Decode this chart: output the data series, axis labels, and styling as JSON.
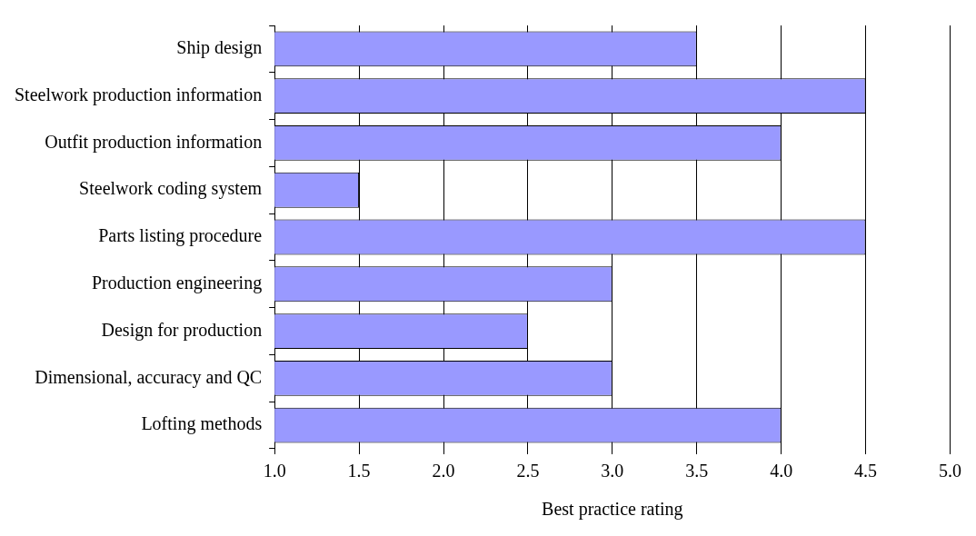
{
  "chart_data": {
    "type": "bar",
    "orientation": "horizontal",
    "xlabel": "Best practice rating",
    "categories": [
      "Ship design",
      "Steelwork production information",
      "Outfit production information",
      "Steelwork coding system",
      "Parts listing procedure",
      "Production engineering",
      "Design for production",
      "Dimensional, accuracy and QC",
      "Lofting methods"
    ],
    "values": [
      3.5,
      4.5,
      4.0,
      1.5,
      4.5,
      3.0,
      2.5,
      3.0,
      4.0
    ],
    "color": "#9999ff",
    "xlim": [
      1,
      5
    ],
    "xticks": [
      {
        "value": 1,
        "label": "1.0"
      },
      {
        "value": 1.5,
        "label": "1.5"
      },
      {
        "value": 2,
        "label": "2.0"
      },
      {
        "value": 2.5,
        "label": "2.5"
      },
      {
        "value": 3,
        "label": "3.0"
      },
      {
        "value": 3.5,
        "label": "3.5"
      },
      {
        "value": 4,
        "label": "4.0"
      },
      {
        "value": 4.5,
        "label": "4.5"
      },
      {
        "value": 5,
        "label": "5.0"
      }
    ],
    "grid": "x",
    "legend": false
  }
}
